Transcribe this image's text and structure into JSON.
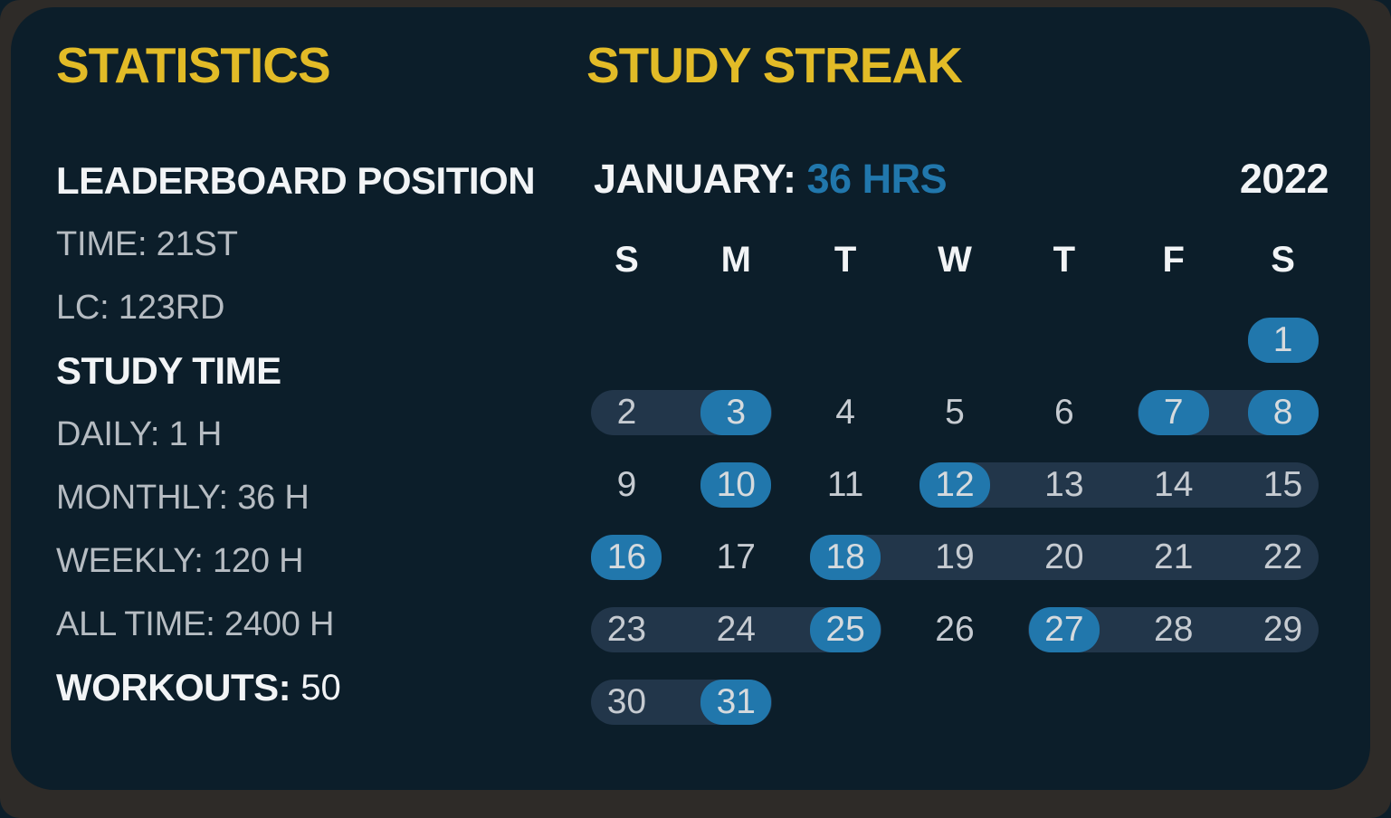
{
  "colors": {
    "card_bg": "#0c1e2a",
    "frame_bg": "#2e2b28",
    "accent_yellow": "#e2bb27",
    "accent_blue": "#2177ac",
    "streak_run_bg": "#22364a",
    "heading_white": "#f2f4f6",
    "stat_gray": "#b6bcc2",
    "date_gray": "#c6cbd1"
  },
  "statistics": {
    "title": "STATISTICS",
    "rows": [
      {
        "kind": "header",
        "label": "LEADERBOARD POSITION",
        "value": ""
      },
      {
        "kind": "stat",
        "label": "TIME:",
        "value": "21ST"
      },
      {
        "kind": "stat",
        "label": "LC:",
        "value": "123RD"
      },
      {
        "kind": "header",
        "label": "STUDY TIME",
        "value": ""
      },
      {
        "kind": "stat",
        "label": "DAILY:",
        "value": "1 H"
      },
      {
        "kind": "stat",
        "label": "MONTHLY:",
        "value": "36 H"
      },
      {
        "kind": "stat",
        "label": "WEEKLY:",
        "value": "120 H"
      },
      {
        "kind": "stat",
        "label": "ALL TIME:",
        "value": "2400 H"
      },
      {
        "kind": "header-stat",
        "label": "WORKOUTS:",
        "value": "50"
      }
    ]
  },
  "streak": {
    "title": "STUDY STREAK",
    "month_label": "JANUARY:",
    "month_hours": "36 HRS",
    "year": "2022",
    "day_headers": [
      "S",
      "M",
      "T",
      "W",
      "T",
      "F",
      "S"
    ],
    "weeks": [
      {
        "days": [
          null,
          null,
          null,
          null,
          null,
          null,
          {
            "n": "1",
            "blue": true
          }
        ],
        "runs": []
      },
      {
        "days": [
          {
            "n": "2"
          },
          {
            "n": "3",
            "blue": true
          },
          {
            "n": "4"
          },
          {
            "n": "5"
          },
          {
            "n": "6"
          },
          {
            "n": "7",
            "blue": true
          },
          {
            "n": "8",
            "blue": true
          }
        ],
        "runs": [
          [
            0,
            1
          ],
          [
            5,
            6
          ]
        ]
      },
      {
        "days": [
          {
            "n": "9"
          },
          {
            "n": "10",
            "blue": true
          },
          {
            "n": "11"
          },
          {
            "n": "12",
            "blue": true
          },
          {
            "n": "13"
          },
          {
            "n": "14"
          },
          {
            "n": "15"
          }
        ],
        "runs": [
          [
            3,
            6
          ]
        ]
      },
      {
        "days": [
          {
            "n": "16",
            "blue": true
          },
          {
            "n": "17"
          },
          {
            "n": "18",
            "blue": true
          },
          {
            "n": "19"
          },
          {
            "n": "20"
          },
          {
            "n": "21"
          },
          {
            "n": "22"
          }
        ],
        "runs": [
          [
            2,
            6
          ]
        ]
      },
      {
        "days": [
          {
            "n": "23"
          },
          {
            "n": "24"
          },
          {
            "n": "25",
            "blue": true
          },
          {
            "n": "26"
          },
          {
            "n": "27",
            "blue": true
          },
          {
            "n": "28"
          },
          {
            "n": "29"
          }
        ],
        "runs": [
          [
            0,
            2
          ],
          [
            4,
            6
          ]
        ]
      },
      {
        "days": [
          {
            "n": "30"
          },
          {
            "n": "31",
            "blue": true
          },
          null,
          null,
          null,
          null,
          null
        ],
        "runs": [
          [
            0,
            1
          ]
        ]
      }
    ]
  }
}
